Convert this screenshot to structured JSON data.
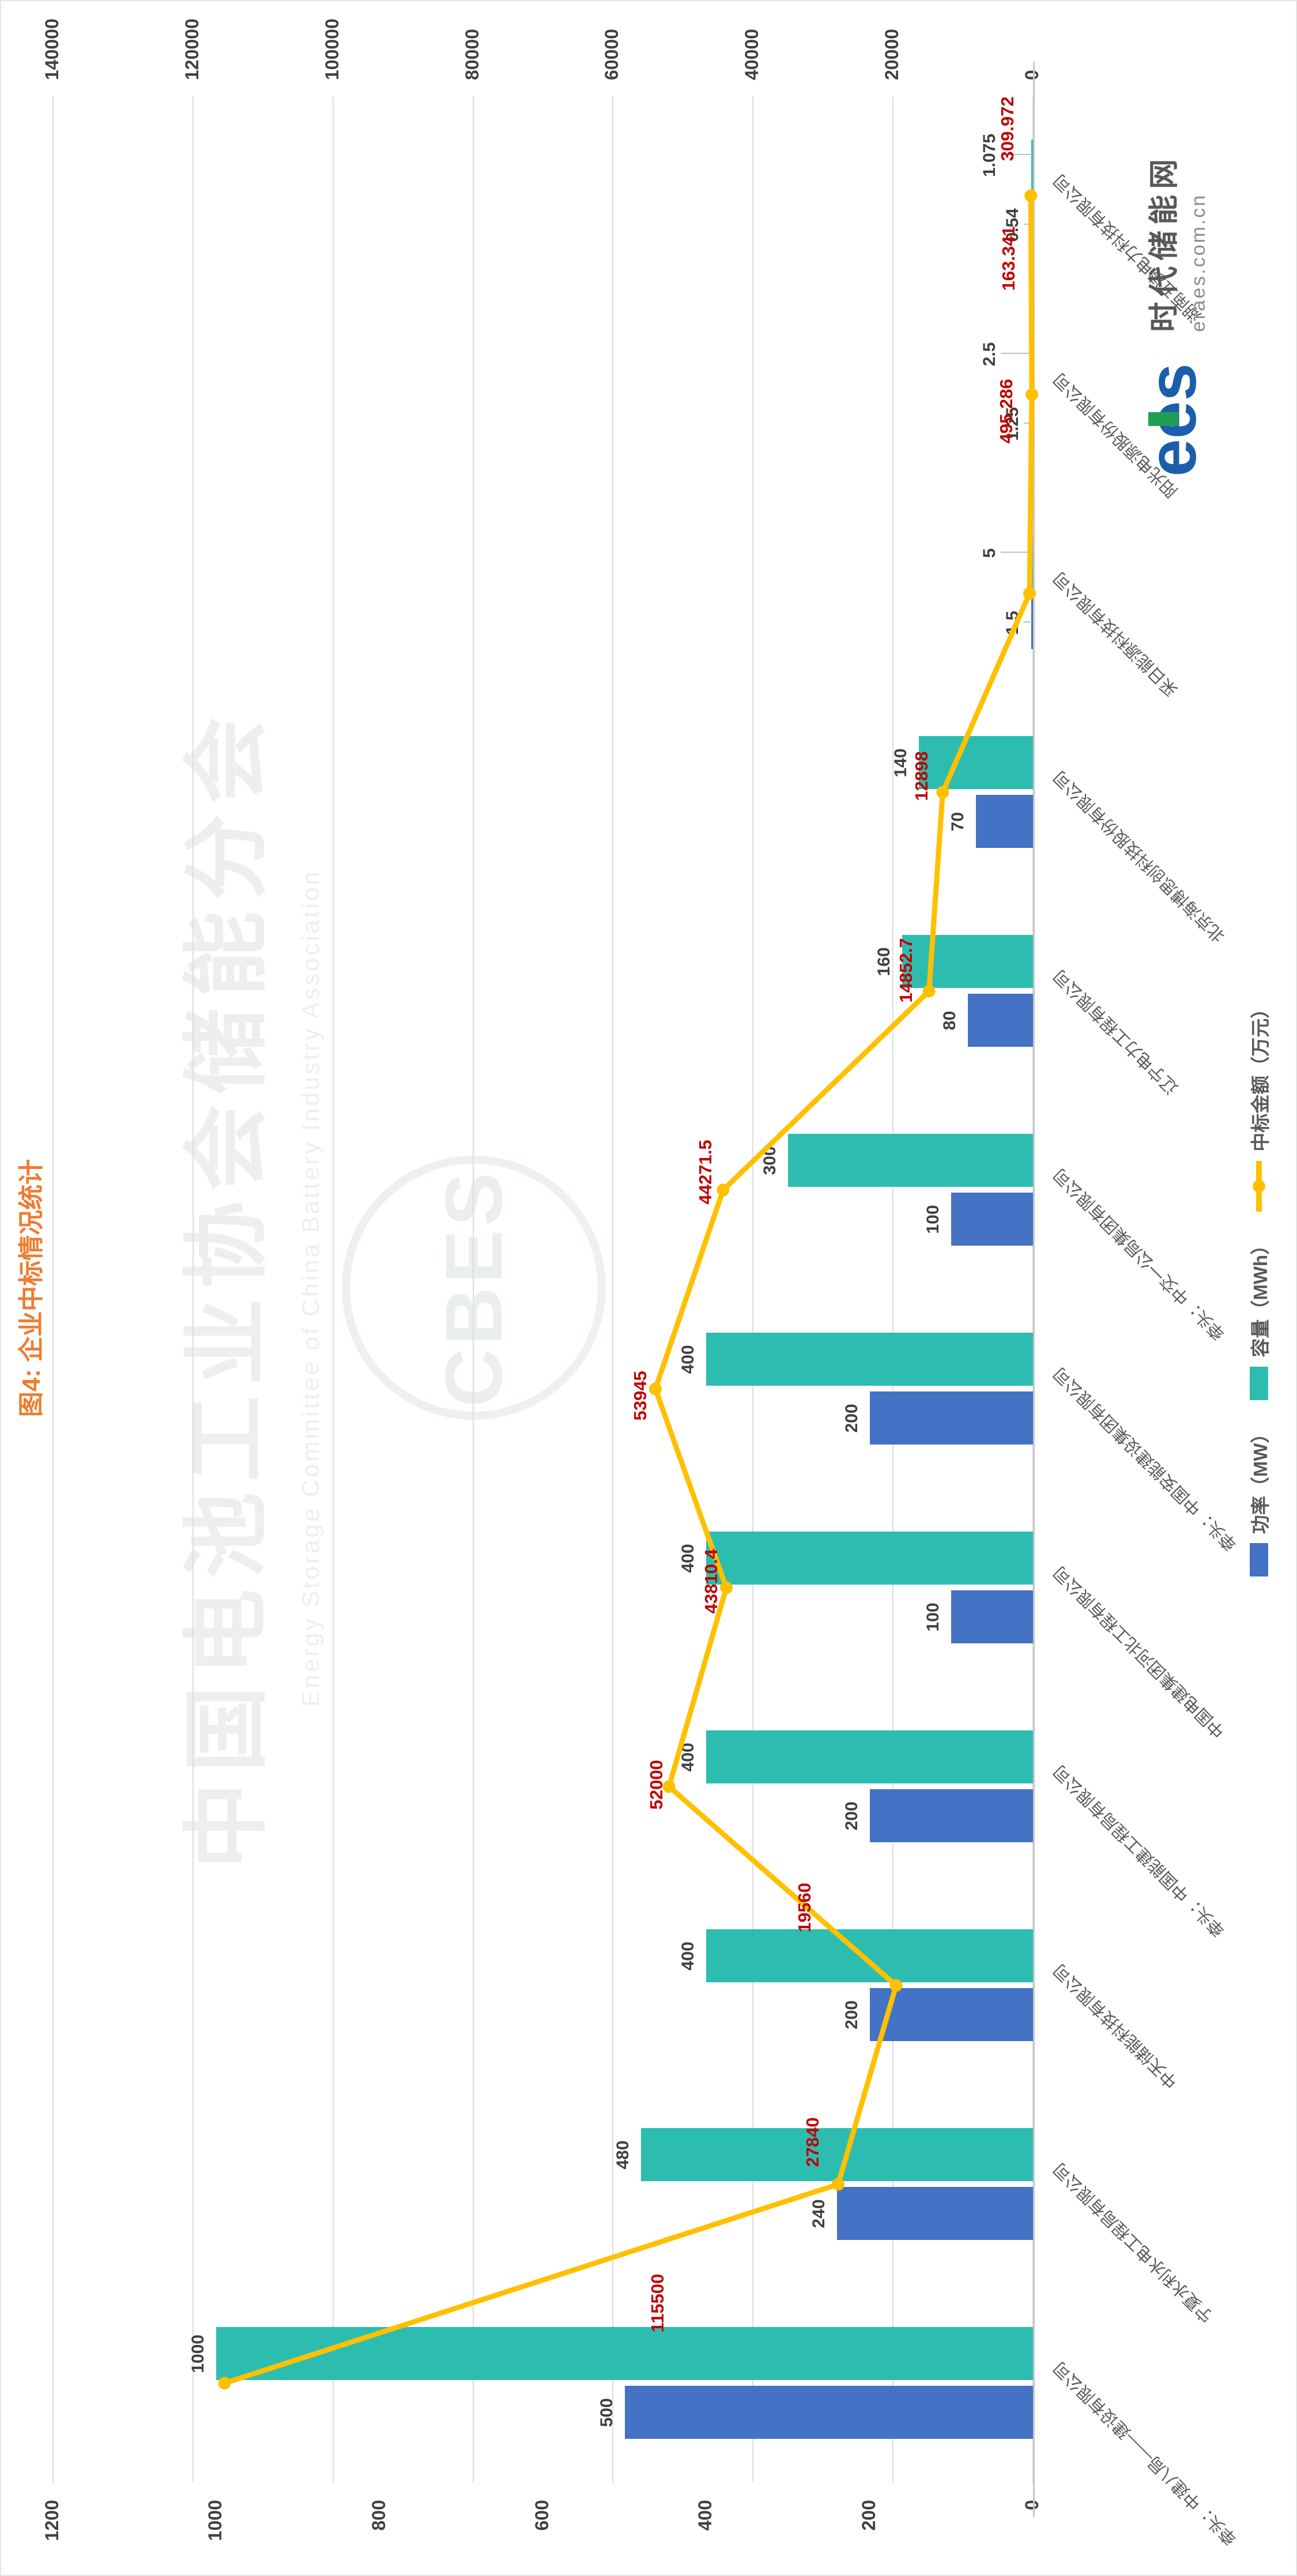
{
  "title": "图4: 企业中标情况统计",
  "logo": {
    "brand": "ees",
    "name": "时代储能网",
    "site": "eraes.com.cn"
  },
  "watermark": {
    "cn": "中国电池工业协会储能分会",
    "en": "Energy Storage Committee of China Battery Industry Association",
    "abbr": "CBES"
  },
  "legend": [
    {
      "label": "功率（MW）",
      "color": "#4472C4",
      "type": "bar"
    },
    {
      "label": "容量（MWh）",
      "color": "#2CBDB0",
      "type": "bar"
    },
    {
      "label": "中标金额（万元）",
      "color": "#FFC000",
      "type": "line"
    }
  ],
  "chart_data": {
    "type": "bar",
    "subtype": "grouped bars + line, dual value axes, category labels rotated 45°, whole chart rotated 90° CCW in screenshot",
    "title": "图4: 企业中标情况统计",
    "categories": [
      "牵头：中建八局——建设有限公司",
      "宁夏水利水电工程局有限公司",
      "中天储能科技有限公司",
      "牵头：中国能建工程局有限公司",
      "中国电建集团河北工程有限公司",
      "牵头：中国安能建设集团有限公司",
      "牵头：中交一公局集团有限公司",
      "辽宁电力工程有限公司",
      "北京海博思创科技股份有限公司",
      "采日能源科技有限公司",
      "阳光电源股份有限公司",
      "湖南五凌电力科技有限公司"
    ],
    "series": [
      {
        "name": "功率（MW）",
        "type": "bar",
        "color": "#4472C4",
        "values": [
          500,
          240,
          200,
          200,
          100,
          200,
          100,
          80,
          70,
          1.5,
          1.25,
          0.54
        ]
      },
      {
        "name": "容量（MWh）",
        "type": "bar",
        "color": "#2CBDB0",
        "values": [
          1000,
          480,
          400,
          400,
          400,
          400,
          300,
          160,
          140,
          5,
          2.5,
          1.075
        ]
      },
      {
        "name": "中标金额（万元）",
        "type": "line",
        "color": "#FFC000",
        "values": [
          115500,
          27840,
          19560,
          52000,
          43810.4,
          53945,
          44271.5,
          14852.7,
          12898,
          495.286,
          163.341,
          309.972
        ]
      }
    ],
    "amount_labels": [
      "115500",
      "27840",
      "19560",
      "52000",
      "43810.4",
      "53945",
      "44271.5",
      "14852.7",
      "12898",
      "495.286",
      "163.341",
      "309.972"
    ],
    "bar_axis": {
      "min": 0,
      "max": 1200,
      "step": 200,
      "ticks": [
        "1200",
        "1000",
        "800",
        "600",
        "400",
        "200",
        "0"
      ]
    },
    "amount_axis": {
      "min": 0,
      "max": 140000,
      "step": 20000,
      "ticks": [
        "140000",
        "120000",
        "100000",
        "80000",
        "60000",
        "40000",
        "20000",
        "0"
      ]
    },
    "grid": true,
    "legend_position": "bottom"
  }
}
